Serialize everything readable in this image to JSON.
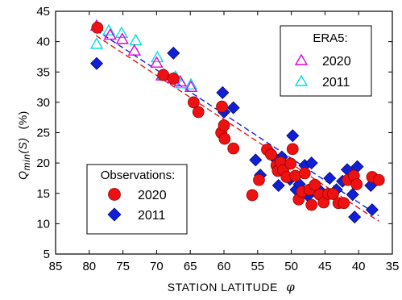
{
  "chart_data": {
    "type": "scatter",
    "xlabel": "STATION  LATITUDE",
    "xlabel_symbol": "φ",
    "ylabel_prefix": "Q",
    "ylabel_subscript": "min",
    "ylabel_arg": "(S)",
    "ylabel_unit": "(%)",
    "xlim": [
      85,
      35
    ],
    "ylim": [
      5,
      45
    ],
    "x_ticks": [
      85,
      80,
      75,
      70,
      65,
      60,
      55,
      50,
      45,
      40,
      35
    ],
    "y_ticks": [
      5,
      10,
      15,
      20,
      25,
      30,
      35,
      40,
      45
    ],
    "x_tick_labels": [
      "85",
      "80",
      "75",
      "70",
      "65",
      "60",
      "55",
      "50",
      "45",
      "40",
      "35"
    ],
    "y_tick_labels": [
      "5",
      "10",
      "15",
      "20",
      "25",
      "30",
      "35",
      "40",
      "45"
    ],
    "grid": false,
    "legends": [
      {
        "title": "ERA5:",
        "placement": "top-right",
        "entries": [
          {
            "label": "2020",
            "marker": "triangle-open",
            "color": "#e000e0"
          },
          {
            "label": "2011",
            "marker": "triangle-open",
            "color": "#00e0e8"
          }
        ]
      },
      {
        "title": "Observations:",
        "placement": "bottom-left",
        "entries": [
          {
            "label": "2020",
            "marker": "circle-filled",
            "color": "#ee1111"
          },
          {
            "label": "2011",
            "marker": "diamond-filled",
            "color": "#1020d8"
          }
        ]
      }
    ],
    "series": [
      {
        "id": "era5-2020",
        "marker": "triangle-open",
        "color": "#e000e0",
        "points": [
          [
            78.9,
            42.6
          ],
          [
            76.9,
            41.1
          ],
          [
            75.1,
            40.4
          ],
          [
            73.3,
            38.5
          ],
          [
            70.0,
            36.5
          ],
          [
            69.2,
            34.4
          ],
          [
            67.5,
            33.9
          ],
          [
            66.5,
            33.4
          ],
          [
            64.9,
            32.5
          ]
        ]
      },
      {
        "id": "era5-2011",
        "marker": "triangle-open",
        "color": "#00e0e8",
        "points": [
          [
            78.9,
            39.6
          ],
          [
            77.1,
            41.8
          ],
          [
            75.2,
            41.4
          ],
          [
            73.1,
            40.2
          ],
          [
            69.9,
            37.4
          ],
          [
            68.9,
            34.6
          ],
          [
            67.2,
            34.2
          ],
          [
            66.3,
            33.1
          ],
          [
            64.9,
            32.9
          ]
        ]
      },
      {
        "id": "obs-2020",
        "marker": "circle-filled",
        "color": "#ee1111",
        "points": [
          [
            78.8,
            42.3
          ],
          [
            69.0,
            34.5
          ],
          [
            67.5,
            33.9
          ],
          [
            64.5,
            30.0
          ],
          [
            63.8,
            28.4
          ],
          [
            60.3,
            29.3
          ],
          [
            60.4,
            25.0
          ],
          [
            59.9,
            24.0
          ],
          [
            60.0,
            26.2
          ],
          [
            58.6,
            22.4
          ],
          [
            55.8,
            14.7
          ],
          [
            54.8,
            17.2
          ],
          [
            53.6,
            22.2
          ],
          [
            53.0,
            21.4
          ],
          [
            52.2,
            19.6
          ],
          [
            52.0,
            18.7
          ],
          [
            51.6,
            20.1
          ],
          [
            51.2,
            18.8
          ],
          [
            50.7,
            17.7
          ],
          [
            50.1,
            19.9
          ],
          [
            49.8,
            22.3
          ],
          [
            49.4,
            17.9
          ],
          [
            48.9,
            14.0
          ],
          [
            48.4,
            15.3
          ],
          [
            48.0,
            18.3
          ],
          [
            47.3,
            15.6
          ],
          [
            47.0,
            13.1
          ],
          [
            46.5,
            16.4
          ],
          [
            45.8,
            14.8
          ],
          [
            45.2,
            13.5
          ],
          [
            44.5,
            14.9
          ],
          [
            43.8,
            14.9
          ],
          [
            43.0,
            13.4
          ],
          [
            42.2,
            13.4
          ],
          [
            41.6,
            17.2
          ],
          [
            40.7,
            17.9
          ],
          [
            40.3,
            16.5
          ],
          [
            38.0,
            17.7
          ],
          [
            37.0,
            17.2
          ]
        ]
      },
      {
        "id": "obs-2011",
        "marker": "diamond-filled",
        "color": "#1020d8",
        "points": [
          [
            78.9,
            36.4
          ],
          [
            67.5,
            38.1
          ],
          [
            60.2,
            31.6
          ],
          [
            60.0,
            28.4
          ],
          [
            58.6,
            29.1
          ],
          [
            55.3,
            20.5
          ],
          [
            54.6,
            18.0
          ],
          [
            53.4,
            22.1
          ],
          [
            52.3,
            20.6
          ],
          [
            51.9,
            16.3
          ],
          [
            51.4,
            21.0
          ],
          [
            50.2,
            17.3
          ],
          [
            49.8,
            24.5
          ],
          [
            49.3,
            15.6
          ],
          [
            48.8,
            16.5
          ],
          [
            48.0,
            19.6
          ],
          [
            47.5,
            14.6
          ],
          [
            47.0,
            20.0
          ],
          [
            46.5,
            16.0
          ],
          [
            45.6,
            15.3
          ],
          [
            44.3,
            17.5
          ],
          [
            43.3,
            15.6
          ],
          [
            42.4,
            17.0
          ],
          [
            41.7,
            18.9
          ],
          [
            40.9,
            14.8
          ],
          [
            40.6,
            11.1
          ],
          [
            40.2,
            19.4
          ],
          [
            38.2,
            16.3
          ],
          [
            38.0,
            12.3
          ]
        ]
      }
    ],
    "trend_lines": [
      {
        "id": "trend-red",
        "color": "#ee1111",
        "style": "dashed",
        "from": [
          79,
          41.0
        ],
        "to": [
          37,
          10.4
        ]
      },
      {
        "id": "trend-blue",
        "color": "#1020d8",
        "style": "dashed",
        "from": [
          79,
          41.9
        ],
        "to": [
          37,
          11.3
        ]
      }
    ]
  }
}
